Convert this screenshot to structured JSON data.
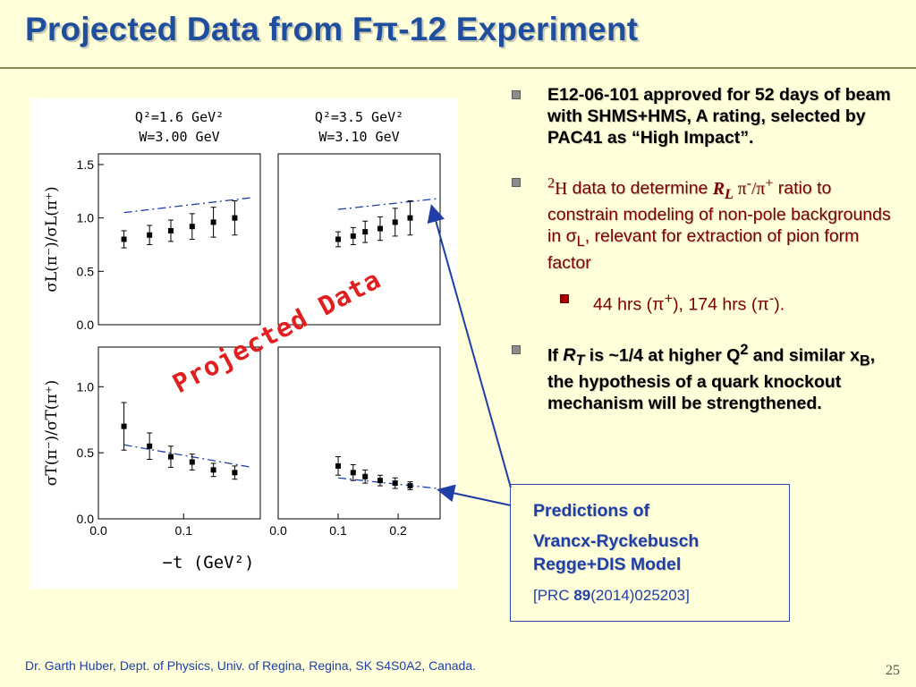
{
  "slide": {
    "title": "Projected Data from Fπ-12 Experiment",
    "footer": "Dr. Garth Huber, Dept. of Physics, Univ. of Regina, Regina, SK S4S0A2, Canada.",
    "page_number": "25",
    "overlay_label": "Projected Data"
  },
  "bullets": {
    "b1": "E12-06-101 approved for 52 days of beam with SHMS+HMS, A rating, selected by PAC41 as “High Impact”.",
    "b2": {
      "iso": "2",
      "iso_el": "H",
      "t1": " data to determine ",
      "R": "R",
      "R_sub": "L",
      "pi1": " π",
      "pi1_sup": "-",
      "slash": "/π",
      "pi2_sup": "+",
      "t2": " ratio to constrain modeling of non-pole backgrounds in σ",
      "sigma_sub": "L",
      "t3": ", relevant for extraction of pion form factor"
    },
    "sub": {
      "t1": "44 hrs (π",
      "sup1": "+",
      "t2": "), 174 hrs (π",
      "sup2": "-",
      "t3": ")."
    },
    "b3": {
      "t1": "If ",
      "R": "R",
      "R_sub": "T",
      "t2": " is ~1/4 at higher Q",
      "Q_sup": "2",
      "t3": " and similar x",
      "x_sub": "B",
      "t4": ", the hypothesis of a quark knockout mechanism will be strengthened."
    }
  },
  "predictions_box": {
    "line1": "Predictions of",
    "line2": "Vrancx-Ryckebusch",
    "line3": "Regge+DIS Model",
    "ref_open": "[PRC ",
    "ref_vol": "89",
    "ref_rest": "(2014)025203]"
  },
  "chart_data": [
    {
      "type": "scatter",
      "panel": "top-left",
      "title": [
        "Q²=1.6  GeV²",
        "W=3.00  GeV"
      ],
      "ylabel": "σL(π⁻)/σL(π⁺)",
      "xlabel": "",
      "xlim": [
        0.0,
        0.19
      ],
      "ylim": [
        0.0,
        1.6
      ],
      "yticks": [
        0.0,
        0.5,
        1.0,
        1.5
      ],
      "xticks": [],
      "series": [
        {
          "x": [
            0.03,
            0.06,
            0.085,
            0.11,
            0.135,
            0.16
          ],
          "y": [
            0.8,
            0.84,
            0.88,
            0.92,
            0.96,
            1.0
          ],
          "err": [
            0.08,
            0.09,
            0.1,
            0.12,
            0.14,
            0.16
          ]
        }
      ],
      "prediction": {
        "x": [
          0.03,
          0.18
        ],
        "y": [
          1.05,
          1.19
        ]
      }
    },
    {
      "type": "scatter",
      "panel": "top-right",
      "title": [
        "Q²=3.5  GeV²",
        "W=3.10  GeV"
      ],
      "ylabel": "",
      "xlabel": "",
      "xlim": [
        0.0,
        0.27
      ],
      "ylim": [
        0.0,
        1.6
      ],
      "yticks": [],
      "xticks": [],
      "series": [
        {
          "x": [
            0.1,
            0.125,
            0.145,
            0.17,
            0.195,
            0.22
          ],
          "y": [
            0.8,
            0.83,
            0.87,
            0.9,
            0.96,
            1.0
          ],
          "err": [
            0.07,
            0.08,
            0.1,
            0.11,
            0.13,
            0.16
          ]
        }
      ],
      "prediction": {
        "x": [
          0.1,
          0.265
        ],
        "y": [
          1.08,
          1.18
        ]
      }
    },
    {
      "type": "scatter",
      "panel": "bottom-left",
      "title": [],
      "ylabel": "σT(π⁻)/σT(π⁺)",
      "xlabel": "",
      "xlim": [
        0.0,
        0.19
      ],
      "ylim": [
        0.0,
        1.3
      ],
      "yticks": [
        0.0,
        0.5,
        1.0
      ],
      "xticks": [
        0.0,
        0.1
      ],
      "series": [
        {
          "x": [
            0.03,
            0.06,
            0.085,
            0.11,
            0.135,
            0.16
          ],
          "y": [
            0.7,
            0.55,
            0.47,
            0.43,
            0.37,
            0.35
          ],
          "err": [
            0.18,
            0.1,
            0.08,
            0.06,
            0.05,
            0.05
          ]
        }
      ],
      "prediction": {
        "x": [
          0.03,
          0.18
        ],
        "y": [
          0.56,
          0.39
        ]
      }
    },
    {
      "type": "scatter",
      "panel": "bottom-right",
      "title": [],
      "ylabel": "",
      "xlabel": "−t  (GeV²)",
      "xlim": [
        0.0,
        0.27
      ],
      "ylim": [
        0.0,
        1.3
      ],
      "yticks": [],
      "xticks": [
        0.0,
        0.1,
        0.2
      ],
      "series": [
        {
          "x": [
            0.1,
            0.125,
            0.145,
            0.17,
            0.195,
            0.22
          ],
          "y": [
            0.4,
            0.35,
            0.32,
            0.29,
            0.27,
            0.25
          ],
          "err": [
            0.07,
            0.06,
            0.05,
            0.04,
            0.04,
            0.03
          ]
        }
      ],
      "prediction": {
        "x": [
          0.1,
          0.265
        ],
        "y": [
          0.31,
          0.23
        ]
      }
    }
  ]
}
